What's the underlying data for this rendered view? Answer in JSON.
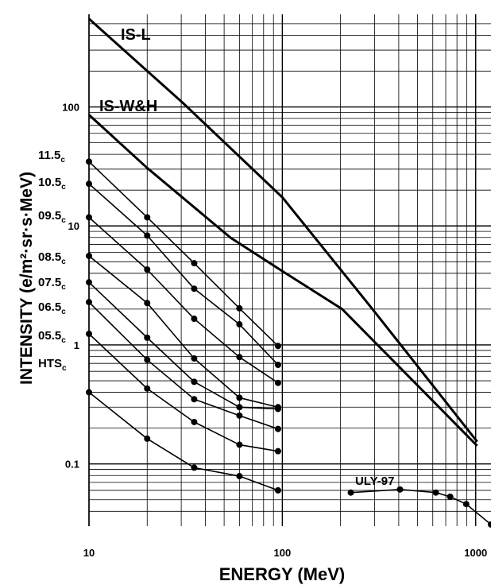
{
  "chart_data": {
    "type": "line",
    "xlabel": "ENERGY (MeV)",
    "ylabel": "INTENSITY (e/m²·sr·s·MeV)",
    "xscale": "log",
    "yscale": "log",
    "grid": true,
    "xlim": [
      10,
      1200
    ],
    "xticks": [
      10,
      100,
      1000
    ],
    "ylim": [
      0.03,
      600
    ],
    "yticks": [
      0.1,
      1,
      10,
      100
    ],
    "series": [
      {
        "name": "IS-L",
        "color": "#000000",
        "markers": false,
        "x": [
          10,
          30.6,
          100,
          297,
          1018
        ],
        "values": [
          550,
          108,
          17.4,
          1.94,
          0.154
        ]
      },
      {
        "name": "IS-W&H",
        "color": "#000000",
        "markers": false,
        "x": [
          10,
          20,
          54.1,
          100,
          204,
          1018
        ],
        "values": [
          85.8,
          30.7,
          7.94,
          4.17,
          2.0,
          0.142
        ]
      },
      {
        "name": "11.5",
        "subscript": "c",
        "color": "#000000",
        "markers": true,
        "x": [
          10,
          20,
          35,
          60,
          95
        ],
        "values": [
          34.7,
          11.8,
          4.86,
          2.03,
          0.98
        ]
      },
      {
        "name": "10.5",
        "subscript": "c",
        "color": "#000000",
        "markers": true,
        "x": [
          10,
          20,
          35,
          60,
          95
        ],
        "values": [
          22.6,
          8.3,
          2.97,
          1.49,
          0.68
        ]
      },
      {
        "name": "09.5",
        "subscript": "c",
        "color": "#000000",
        "markers": true,
        "x": [
          10,
          20,
          35,
          60,
          95
        ],
        "values": [
          11.8,
          4.3,
          1.66,
          0.79,
          0.48
        ]
      },
      {
        "name": "08.5",
        "subscript": "c",
        "color": "#000000",
        "markers": true,
        "x": [
          10,
          20,
          35,
          60,
          95
        ],
        "values": [
          5.6,
          2.25,
          0.77,
          0.36,
          0.3
        ]
      },
      {
        "name": "07.5",
        "subscript": "c",
        "color": "#000000",
        "markers": true,
        "x": [
          10,
          20,
          35,
          60,
          95
        ],
        "values": [
          3.36,
          1.15,
          0.49,
          0.3,
          0.29
        ]
      },
      {
        "name": "06.5",
        "subscript": "c",
        "color": "#000000",
        "markers": true,
        "x": [
          10,
          20,
          35,
          60,
          95
        ],
        "values": [
          2.29,
          0.75,
          0.35,
          0.255,
          0.197
        ]
      },
      {
        "name": "05.5",
        "subscript": "c",
        "color": "#000000",
        "markers": true,
        "x": [
          10,
          20,
          35,
          60,
          95
        ],
        "values": [
          1.24,
          0.43,
          0.225,
          0.145,
          0.128
        ]
      },
      {
        "name": "HTS",
        "subscript": "c",
        "color": "#000000",
        "markers": true,
        "x": [
          10,
          20,
          35,
          60,
          95
        ],
        "values": [
          0.4,
          0.163,
          0.093,
          0.079,
          0.06
        ]
      },
      {
        "name": "ULY-97",
        "color": "#000000",
        "markers": true,
        "x": [
          226,
          406,
          622,
          738,
          893,
          1200
        ],
        "values": [
          0.0575,
          0.061,
          0.0575,
          0.053,
          0.046,
          0.031
        ]
      }
    ]
  }
}
